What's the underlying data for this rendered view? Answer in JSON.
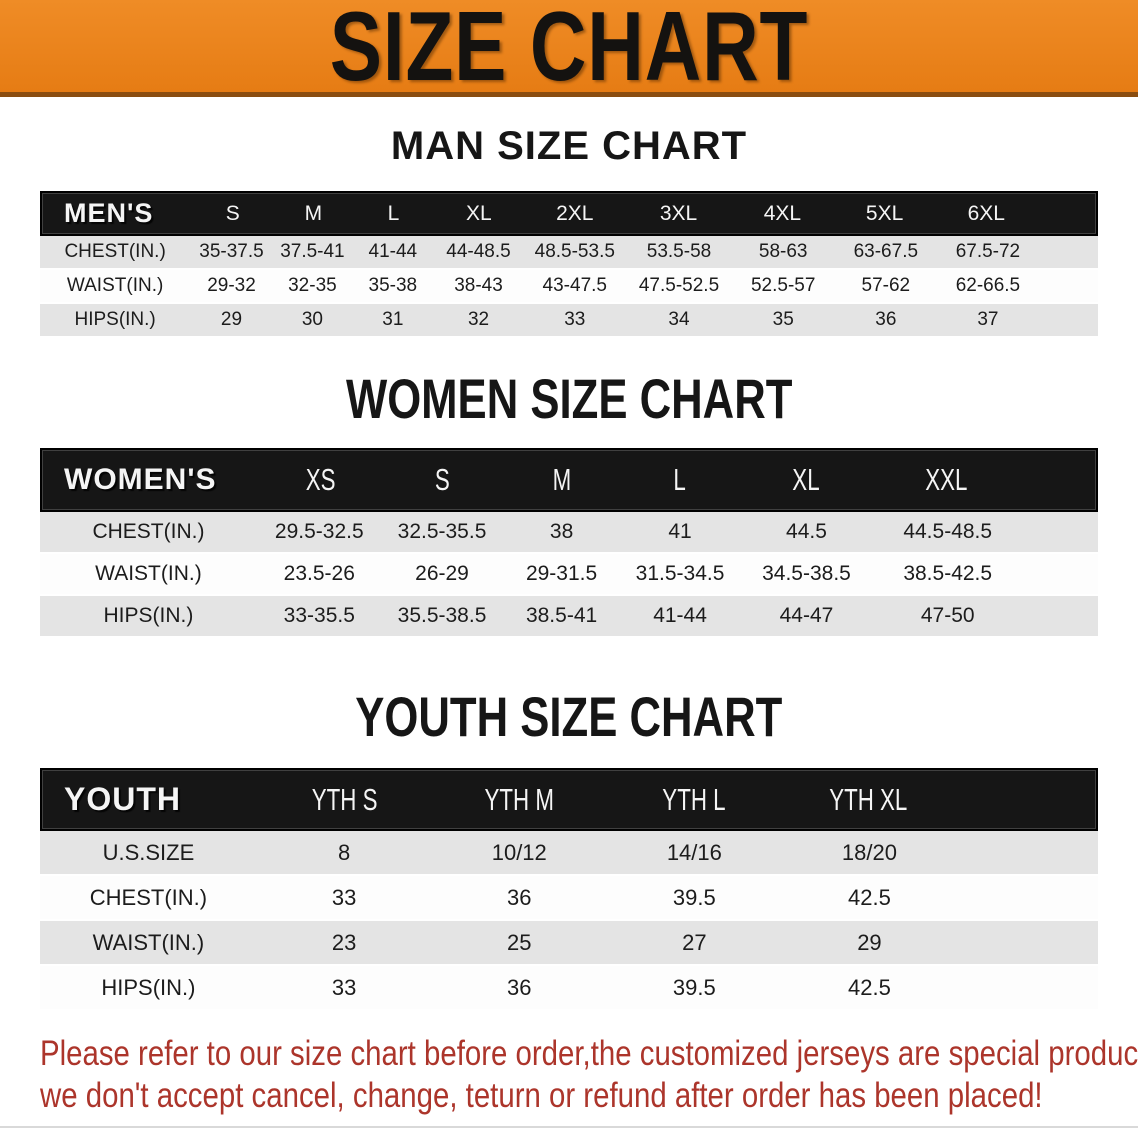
{
  "banner": {
    "title": "SIZE CHART",
    "bg_color": "#E8821E",
    "text_color": "#141210"
  },
  "sections": [
    {
      "heading": "MAN SIZE CHART",
      "corner_label": "MEN'S",
      "columns": [
        "S",
        "M",
        "L",
        "XL",
        "2XL",
        "3XL",
        "4XL",
        "5XL",
        "6XL"
      ],
      "rows": [
        {
          "label": "CHEST(IN.)",
          "values": [
            "35-37.5",
            "37.5-41",
            "41-44",
            "44-48.5",
            "48.5-53.5",
            "53.5-58",
            "58-63",
            "63-67.5",
            "67.5-72"
          ]
        },
        {
          "label": "WAIST(IN.)",
          "values": [
            "29-32",
            "32-35",
            "35-38",
            "38-43",
            "43-47.5",
            "47.5-52.5",
            "52.5-57",
            "57-62",
            "62-66.5"
          ]
        },
        {
          "label": "HIPS(IN.)",
          "values": [
            "29",
            "30",
            "31",
            "32",
            "33",
            "34",
            "35",
            "36",
            "37"
          ]
        }
      ]
    },
    {
      "heading": "WOMEN SIZE CHART",
      "corner_label": "WOMEN'S",
      "columns": [
        "XS",
        "S",
        "M",
        "L",
        "XL",
        "XXL"
      ],
      "rows": [
        {
          "label": "CHEST(IN.)",
          "values": [
            "29.5-32.5",
            "32.5-35.5",
            "38",
            "41",
            "44.5",
            "44.5-48.5"
          ]
        },
        {
          "label": "WAIST(IN.)",
          "values": [
            "23.5-26",
            "26-29",
            "29-31.5",
            "31.5-34.5",
            "34.5-38.5",
            "38.5-42.5"
          ]
        },
        {
          "label": "HIPS(IN.)",
          "values": [
            "33-35.5",
            "35.5-38.5",
            "38.5-41",
            "41-44",
            "44-47",
            "47-50"
          ]
        }
      ]
    },
    {
      "heading": "YOUTH SIZE CHART",
      "corner_label": "YOUTH",
      "columns": [
        "YTH S",
        "YTH M",
        "YTH L",
        "YTH XL"
      ],
      "rows": [
        {
          "label": "U.S.SIZE",
          "values": [
            "8",
            "10/12",
            "14/16",
            "18/20"
          ]
        },
        {
          "label": "CHEST(IN.)",
          "values": [
            "33",
            "36",
            "39.5",
            "42.5"
          ]
        },
        {
          "label": "WAIST(IN.)",
          "values": [
            "23",
            "25",
            "27",
            "29"
          ]
        },
        {
          "label": "HIPS(IN.)",
          "values": [
            "33",
            "36",
            "39.5",
            "42.5"
          ]
        }
      ]
    }
  ],
  "disclaimer": {
    "line1": "Please refer to our size chart before order,the customized jerseys are special products,",
    "line2": "we don't accept cancel, change, teturn or refund after order has been placed!",
    "color": "#AC352B"
  }
}
